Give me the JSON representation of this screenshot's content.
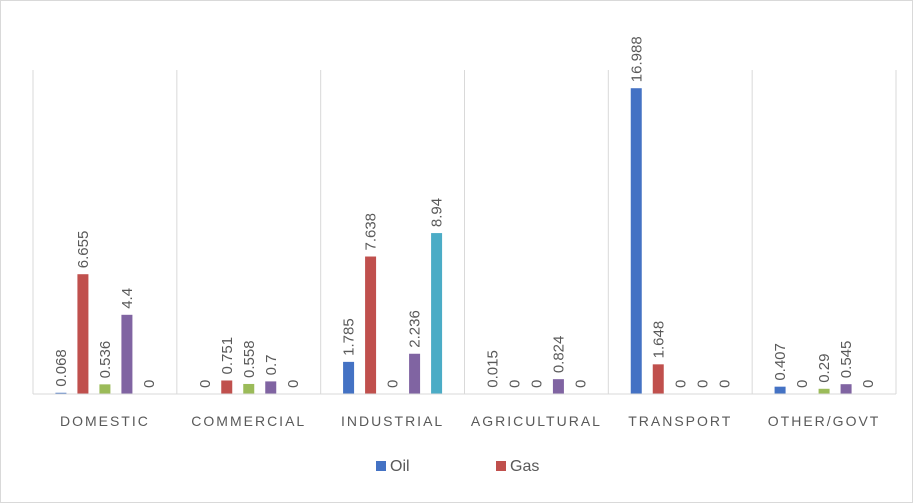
{
  "chart_data": {
    "type": "bar",
    "categories": [
      "DOMESTIC",
      "COMMERCIAL",
      "INDUSTRIAL",
      "AGRICULTURAL",
      "TRANSPORT",
      "OTHER/GOVT"
    ],
    "series": [
      {
        "name": "Oil",
        "color": "#4472c4",
        "values": [
          0.068,
          0,
          1.785,
          0.015,
          16.988,
          0.407
        ]
      },
      {
        "name": "Gas",
        "color": "#c0504d",
        "values": [
          6.655,
          0.751,
          7.638,
          0,
          1.648,
          0
        ]
      },
      {
        "name": "",
        "color": "#9bbb59",
        "values": [
          0.536,
          0.558,
          0,
          0,
          0,
          0.29
        ]
      },
      {
        "name": "",
        "color": "#8064a2",
        "values": [
          4.4,
          0.7,
          2.236,
          0.824,
          0,
          0.545
        ]
      },
      {
        "name": "",
        "color": "#4bacc6",
        "values": [
          0,
          0,
          8.94,
          0,
          0,
          0
        ]
      }
    ],
    "data_labels": [
      [
        "0.068",
        "0",
        "1.785",
        "0.015",
        "16.988",
        "0.407"
      ],
      [
        "6.655",
        "0.751",
        "7.638",
        "0",
        "1.648",
        "0"
      ],
      [
        "0.536",
        "0.558",
        "0",
        "0",
        "0",
        "0.29"
      ],
      [
        "4.4",
        "0.7",
        "2.236",
        "0.824",
        "0",
        "0.545"
      ],
      [
        "0",
        "0",
        "8.94",
        "0",
        "0",
        "0"
      ]
    ],
    "ylim": [
      0,
      18
    ],
    "grid": "vertical category dividers",
    "legend": "bottom"
  }
}
